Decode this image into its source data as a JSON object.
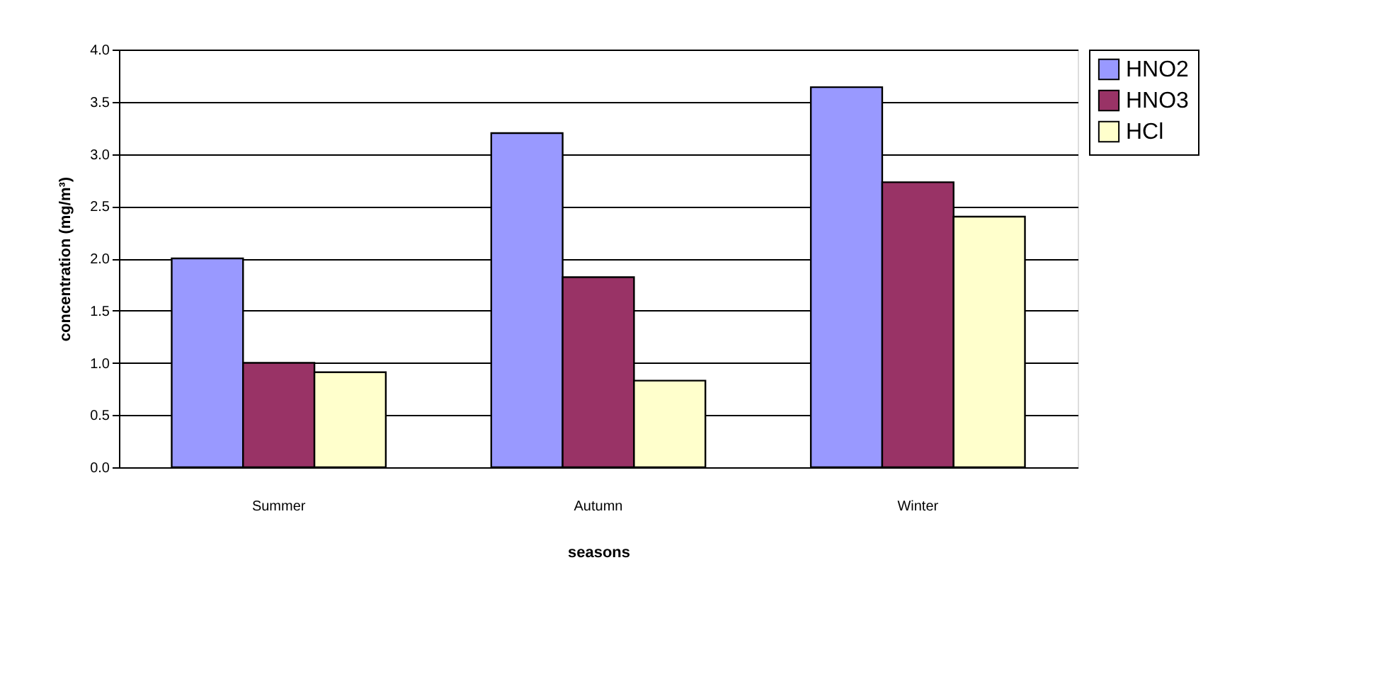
{
  "chart_data": {
    "type": "bar",
    "xlabel": "seasons",
    "ylabel": "concentration (mg/m³)",
    "categories": [
      "Summer",
      "Autumn",
      "Winter"
    ],
    "series": [
      {
        "name": "HNO2",
        "color": "#9999ff",
        "values": [
          2.0,
          3.2,
          3.64
        ]
      },
      {
        "name": "HNO3",
        "color": "#993366",
        "values": [
          1.0,
          1.82,
          2.73
        ]
      },
      {
        "name": "HCl",
        "color": "#ffffcc",
        "values": [
          0.91,
          0.83,
          2.4
        ]
      }
    ],
    "ylim": [
      0,
      4
    ],
    "yticks": [
      {
        "value": 0,
        "label": "0.0"
      },
      {
        "value": 0.5,
        "label": "0.5"
      },
      {
        "value": 1,
        "label": "1.0"
      },
      {
        "value": 1.5,
        "label": "1.5"
      },
      {
        "value": 2,
        "label": "2.0"
      },
      {
        "value": 2.5,
        "label": "2.5"
      },
      {
        "value": 3,
        "label": "3.0"
      },
      {
        "value": 3.5,
        "label": "3.5"
      },
      {
        "value": 4,
        "label": "4.0"
      }
    ],
    "grid": "y",
    "legend": "right"
  }
}
